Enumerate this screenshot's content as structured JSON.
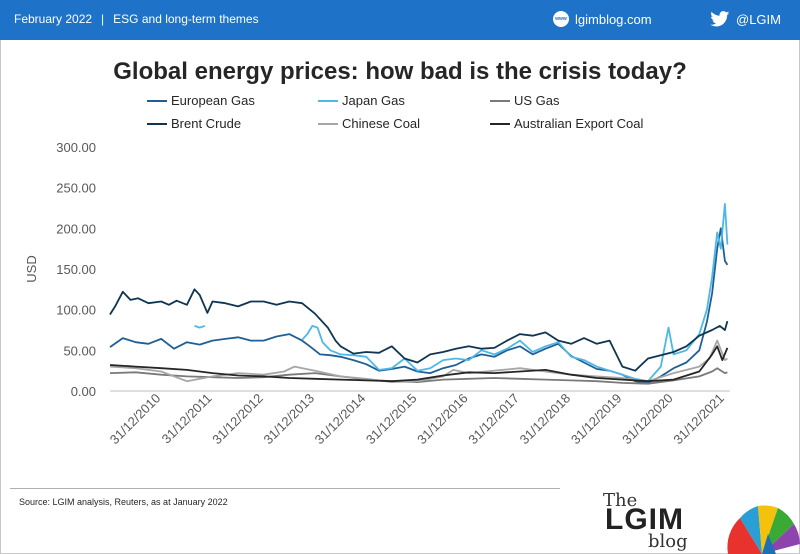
{
  "header": {
    "date": "February 2022",
    "separator": "|",
    "section": "ESG and long-term themes",
    "site": "lgimblog.com",
    "site_icon": "www",
    "twitter": "@LGIM",
    "colors": {
      "bar": "#1e72c8"
    }
  },
  "footer": {
    "source": "Source: LGIM analysis, Reuters, as at January 2022",
    "logo_the": "The",
    "logo_main": "LGIM",
    "logo_blog": "blog"
  },
  "chart_data": {
    "type": "line",
    "title": "Global energy prices: how bad is the crisis today?",
    "xlabel": "",
    "ylabel": "USD",
    "ylim": [
      0,
      300
    ],
    "yticks": [
      "300.00",
      "250.00",
      "200.00",
      "150.00",
      "100.00",
      "50.00",
      "0.00"
    ],
    "xlim": [
      2010.0,
      2022.1
    ],
    "xticks": [
      "31/12/2010",
      "31/12/2011",
      "31/12/2012",
      "31/12/2013",
      "31/12/2014",
      "31/12/2015",
      "31/12/2016",
      "31/12/2017",
      "31/12/2018",
      "31/12/2019",
      "31/12/2020",
      "31/12/2021"
    ],
    "legend_position": "top",
    "series": [
      {
        "name": "European Gas",
        "color": "#1f5f96",
        "x": [
          2010.0,
          2010.25,
          2010.5,
          2010.75,
          2011.0,
          2011.25,
          2011.5,
          2011.75,
          2012.0,
          2012.25,
          2012.5,
          2012.75,
          2013.0,
          2013.25,
          2013.5,
          2013.75,
          2013.9,
          2014.1,
          2014.3,
          2014.5,
          2014.75,
          2015.0,
          2015.25,
          2015.5,
          2015.75,
          2016.0,
          2016.25,
          2016.5,
          2016.75,
          2017.0,
          2017.25,
          2017.5,
          2017.75,
          2018.0,
          2018.25,
          2018.5,
          2018.75,
          2019.0,
          2019.25,
          2019.5,
          2019.75,
          2020.0,
          2020.25,
          2020.5,
          2020.75,
          2021.0,
          2021.25,
          2021.5,
          2021.65,
          2021.75,
          2021.85,
          2021.92,
          2022.0,
          2022.05
        ],
        "values": [
          54,
          65,
          60,
          58,
          64,
          52,
          60,
          57,
          62,
          64,
          66,
          62,
          62,
          67,
          70,
          62,
          55,
          45,
          44,
          42,
          38,
          33,
          25,
          27,
          30,
          24,
          22,
          28,
          32,
          40,
          45,
          42,
          50,
          55,
          45,
          52,
          58,
          43,
          35,
          27,
          25,
          20,
          12,
          10,
          18,
          28,
          35,
          50,
          85,
          120,
          175,
          200,
          160,
          155
        ]
      },
      {
        "name": "Japan Gas",
        "color": "#4db8e8",
        "x": [
          2011.65,
          2011.75,
          2011.85,
          2013.75,
          2013.85,
          2013.95,
          2014.05,
          2014.15,
          2014.3,
          2014.5,
          2014.75,
          2015.0,
          2015.25,
          2015.5,
          2015.75,
          2016.0,
          2016.25,
          2016.5,
          2016.75,
          2017.0,
          2017.25,
          2017.5,
          2017.75,
          2018.0,
          2018.25,
          2018.5,
          2018.75,
          2019.0,
          2019.25,
          2019.5,
          2019.75,
          2020.0,
          2020.25,
          2020.5,
          2020.75,
          2020.9,
          2021.0,
          2021.25,
          2021.5,
          2021.65,
          2021.75,
          2021.85,
          2021.92,
          2022.0,
          2022.05
        ],
        "values": [
          80,
          78,
          80,
          63,
          70,
          80,
          78,
          60,
          50,
          45,
          44,
          42,
          26,
          28,
          40,
          25,
          28,
          38,
          40,
          38,
          50,
          45,
          52,
          62,
          48,
          55,
          60,
          42,
          38,
          30,
          25,
          20,
          15,
          12,
          30,
          78,
          45,
          50,
          70,
          100,
          140,
          195,
          175,
          230,
          180
        ]
      },
      {
        "name": "US Gas",
        "color": "#7a7a7a",
        "x": [
          2010.0,
          2010.5,
          2011.0,
          2011.5,
          2012.0,
          2012.5,
          2013.0,
          2013.5,
          2014.0,
          2014.5,
          2015.0,
          2015.5,
          2016.0,
          2016.5,
          2017.0,
          2017.5,
          2018.0,
          2018.5,
          2019.0,
          2019.5,
          2020.0,
          2020.5,
          2021.0,
          2021.5,
          2021.75,
          2021.85,
          2022.0,
          2022.05
        ],
        "values": [
          22,
          23,
          20,
          18,
          17,
          16,
          17,
          20,
          22,
          18,
          14,
          12,
          11,
          14,
          15,
          16,
          15,
          14,
          13,
          12,
          10,
          9,
          13,
          18,
          24,
          28,
          22,
          23
        ]
      },
      {
        "name": "Brent Crude",
        "color": "#0f3553",
        "x": [
          2010.0,
          2010.1,
          2010.25,
          2010.4,
          2010.55,
          2010.75,
          2011.0,
          2011.15,
          2011.3,
          2011.5,
          2011.65,
          2011.75,
          2011.9,
          2012.0,
          2012.25,
          2012.5,
          2012.75,
          2013.0,
          2013.25,
          2013.5,
          2013.75,
          2014.0,
          2014.25,
          2014.4,
          2014.5,
          2014.75,
          2015.0,
          2015.25,
          2015.5,
          2015.75,
          2016.0,
          2016.25,
          2016.5,
          2016.75,
          2017.0,
          2017.25,
          2017.5,
          2017.75,
          2018.0,
          2018.25,
          2018.5,
          2018.75,
          2019.0,
          2019.25,
          2019.5,
          2019.75,
          2020.0,
          2020.25,
          2020.5,
          2020.75,
          2021.0,
          2021.25,
          2021.5,
          2021.75,
          2021.9,
          2022.0,
          2022.05
        ],
        "values": [
          94,
          104,
          122,
          112,
          114,
          108,
          110,
          106,
          111,
          106,
          125,
          118,
          96,
          110,
          108,
          104,
          110,
          110,
          106,
          110,
          108,
          95,
          78,
          62,
          55,
          46,
          48,
          47,
          55,
          40,
          35,
          45,
          48,
          52,
          55,
          52,
          53,
          62,
          70,
          68,
          72,
          62,
          58,
          65,
          58,
          62,
          30,
          25,
          40,
          44,
          48,
          55,
          68,
          75,
          80,
          75,
          86
        ]
      },
      {
        "name": "Chinese Coal",
        "color": "#a6a6a6",
        "x": [
          2010.0,
          2010.5,
          2011.0,
          2011.5,
          2012.0,
          2012.5,
          2013.0,
          2013.4,
          2013.6,
          2014.0,
          2014.5,
          2015.0,
          2015.5,
          2016.0,
          2016.5,
          2016.7,
          2017.0,
          2017.5,
          2018.0,
          2018.5,
          2019.0,
          2019.5,
          2020.0,
          2020.5,
          2021.0,
          2021.5,
          2021.7,
          2021.85,
          2022.0,
          2022.05
        ],
        "values": [
          30,
          28,
          24,
          12,
          18,
          22,
          20,
          24,
          30,
          25,
          18,
          15,
          11,
          12,
          18,
          26,
          22,
          25,
          28,
          24,
          20,
          18,
          16,
          12,
          22,
          30,
          40,
          62,
          38,
          40
        ]
      },
      {
        "name": "Australian Export Coal",
        "color": "#262626",
        "x": [
          2010.0,
          2010.5,
          2011.0,
          2011.5,
          2012.0,
          2012.5,
          2013.0,
          2013.5,
          2014.0,
          2014.5,
          2015.0,
          2015.5,
          2016.0,
          2016.5,
          2017.0,
          2017.5,
          2018.0,
          2018.5,
          2019.0,
          2019.5,
          2020.0,
          2020.5,
          2021.0,
          2021.5,
          2021.75,
          2021.85,
          2021.95,
          2022.05
        ],
        "values": [
          32,
          30,
          28,
          26,
          22,
          19,
          18,
          16,
          15,
          14,
          13,
          12,
          14,
          19,
          23,
          22,
          24,
          26,
          20,
          16,
          14,
          12,
          14,
          24,
          45,
          55,
          38,
          53
        ]
      }
    ]
  }
}
